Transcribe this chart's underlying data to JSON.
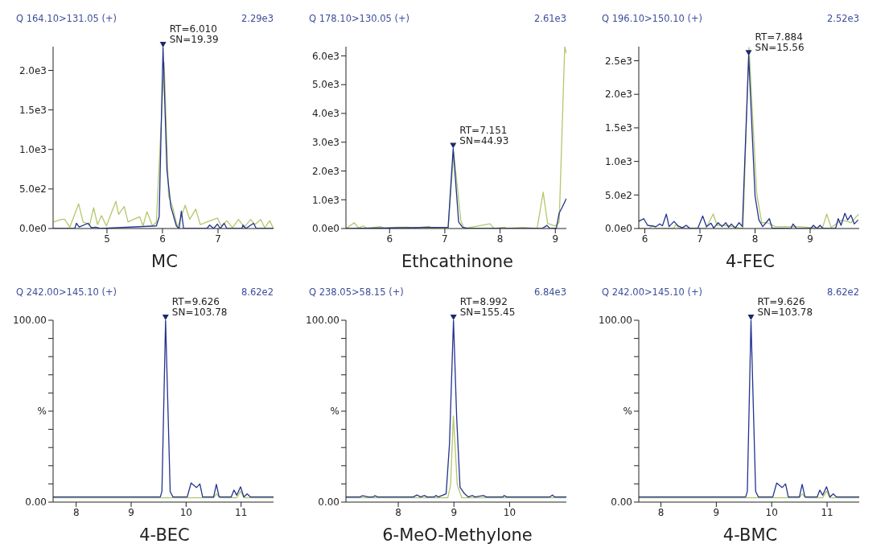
{
  "chart_data": [
    {
      "type": "line",
      "title": "Q 164.10>131.05 (+)",
      "xlabel": "MC",
      "annotations": [
        "2.29e3",
        {
          "text": "RT=6.010\nSN=19.39",
          "x": 6.01,
          "y": 2290
        }
      ],
      "xlim": [
        4.03,
        8.0
      ],
      "xticks": [
        5,
        6,
        7
      ],
      "ylim": [
        0,
        2300
      ],
      "yticks": [
        {
          "value": 0,
          "label": "0.0e0"
        },
        {
          "value": 500,
          "label": "5.0e2"
        },
        {
          "value": 1000,
          "label": "1.0e3"
        },
        {
          "value": 1500,
          "label": "1.5e3"
        },
        {
          "value": 2000,
          "label": "2.0e3"
        }
      ],
      "series": [
        {
          "color": "#b5c76c",
          "x": [
            4.04,
            4.18,
            4.24,
            4.33,
            4.49,
            4.57,
            4.69,
            4.76,
            4.83,
            4.9,
            4.99,
            5.16,
            5.21,
            5.31,
            5.38,
            5.48,
            5.59,
            5.65,
            5.72,
            5.82,
            5.89,
            6.03,
            6.11,
            6.18,
            6.27,
            6.41,
            6.49,
            6.6,
            6.68,
            6.8,
            6.99,
            7.06,
            7.16,
            7.26,
            7.37,
            7.47,
            7.59,
            7.66,
            7.77,
            7.84,
            7.93,
            8.0
          ],
          "values": [
            82,
            115,
            115,
            16,
            312,
            82,
            49,
            262,
            49,
            164,
            33,
            344,
            180,
            279,
            82,
            115,
            148,
            33,
            213,
            33,
            82,
            2100,
            410,
            279,
            16,
            295,
            115,
            246,
            49,
            82,
            131,
            33,
            98,
            10,
            115,
            16,
            115,
            49,
            115,
            10,
            98,
            0
          ]
        },
        {
          "color": "#23338f",
          "x": [
            4.03,
            4.42,
            4.45,
            4.5,
            4.66,
            4.72,
            4.8,
            4.88,
            5.89,
            5.94,
            6.01,
            6.08,
            6.15,
            6.25,
            6.3,
            6.34,
            6.38,
            6.8,
            6.85,
            6.92,
            6.99,
            7.04,
            7.11,
            7.16,
            7.43,
            7.45,
            7.5,
            7.64,
            7.69,
            8.0
          ],
          "values": [
            0,
            0,
            66,
            20,
            66,
            10,
            16,
            0,
            33,
            148,
            2290,
            740,
            280,
            33,
            0,
            220,
            0,
            0,
            43,
            0,
            56,
            0,
            66,
            0,
            0,
            43,
            0,
            66,
            0,
            0
          ]
        }
      ]
    },
    {
      "type": "line",
      "title": "Q 178.10>130.05 (+)",
      "xlabel": "Ethcathinone",
      "annotations": [
        "2.61e3",
        {
          "text": "RT=7.151\nSN=44.93",
          "x": 7.151,
          "y": 2780
        }
      ],
      "xlim": [
        5.21,
        9.2
      ],
      "xticks": [
        6,
        7,
        8,
        9
      ],
      "ylim": [
        0,
        6320
      ],
      "yticks": [
        {
          "value": 0,
          "label": "0.0e0"
        },
        {
          "value": 1000,
          "label": "1.0e3"
        },
        {
          "value": 2000,
          "label": "2.0e3"
        },
        {
          "value": 3000,
          "label": "3.0e3"
        },
        {
          "value": 4000,
          "label": "4.0e3"
        },
        {
          "value": 5000,
          "label": "5.0e3"
        },
        {
          "value": 6000,
          "label": "6.0e3"
        }
      ],
      "series": [
        {
          "color": "#b5c76c",
          "x": [
            5.21,
            5.36,
            5.44,
            5.52,
            5.59,
            5.84,
            5.91,
            6.13,
            6.33,
            6.38,
            6.71,
            6.8,
            7.06,
            7.16,
            7.29,
            7.35,
            7.82,
            7.89,
            8.08,
            8.13,
            8.41,
            8.67,
            8.78,
            8.86,
            9.0,
            9.07,
            9.17,
            9.2
          ],
          "values": [
            0,
            200,
            20,
            90,
            10,
            63,
            0,
            45,
            45,
            0,
            72,
            0,
            0,
            2660,
            270,
            0,
            162,
            0,
            45,
            0,
            36,
            0,
            1260,
            180,
            90,
            225,
            6320,
            6090
          ]
        },
        {
          "color": "#23338f",
          "x": [
            5.21,
            7.06,
            7.151,
            7.25,
            7.32,
            7.42,
            8.76,
            8.85,
            8.9,
            9.02,
            9.07,
            9.12,
            9.2
          ],
          "values": [
            0,
            45,
            2780,
            225,
            45,
            0,
            0,
            108,
            0,
            18,
            540,
            720,
            1040
          ]
        }
      ]
    },
    {
      "type": "line",
      "title": "Q 196.10>150.10 (+)",
      "xlabel": "4-FEC",
      "annotations": [
        "2.52e3",
        {
          "text": "RT=7.884\nSN=15.56",
          "x": 7.884,
          "y": 2575
        }
      ],
      "xlim": [
        5.89,
        9.89
      ],
      "xticks": [
        6,
        7,
        8,
        9
      ],
      "ylim": [
        0,
        2710
      ],
      "yticks": [
        {
          "value": 0,
          "label": "0.0e0"
        },
        {
          "value": 500,
          "label": "5.0e2"
        },
        {
          "value": 1000,
          "label": "1.0e3"
        },
        {
          "value": 1500,
          "label": "1.5e3"
        },
        {
          "value": 2000,
          "label": "2.0e3"
        },
        {
          "value": 2500,
          "label": "2.5e3"
        }
      ],
      "series": [
        {
          "color": "#b5c76c",
          "x": [
            5.89,
            6.08,
            6.14,
            6.21,
            6.52,
            6.57,
            6.62,
            7.1,
            7.16,
            7.24,
            7.31,
            7.5,
            7.74,
            7.78,
            7.89,
            8.03,
            8.12,
            8.22,
            8.37,
            8.8,
            9.22,
            9.3,
            9.38,
            9.57,
            9.74,
            9.88
          ],
          "values": [
            0,
            0,
            48,
            0,
            0,
            68,
            0,
            0,
            87,
            215,
            48,
            48,
            0,
            8,
            2700,
            525,
            87,
            87,
            28,
            28,
            0,
            215,
            16,
            127,
            87,
            215
          ]
        },
        {
          "color": "#23338f",
          "x": [
            5.89,
            5.98,
            6.05,
            6.2,
            6.27,
            6.32,
            6.39,
            6.44,
            6.53,
            6.6,
            6.68,
            6.75,
            6.82,
            6.96,
            7.05,
            7.12,
            7.2,
            7.25,
            7.33,
            7.4,
            7.47,
            7.52,
            7.57,
            7.64,
            7.71,
            7.77,
            7.884,
            8.0,
            8.07,
            8.14,
            8.26,
            8.31,
            8.65,
            8.69,
            8.75,
            9.01,
            9.06,
            9.12,
            9.18,
            9.23,
            9.46,
            9.51,
            9.56,
            9.63,
            9.68,
            9.74,
            9.8,
            9.87
          ],
          "values": [
            107,
            147,
            48,
            28,
            68,
            40,
            215,
            28,
            107,
            40,
            10,
            48,
            0,
            0,
            187,
            28,
            80,
            8,
            87,
            28,
            87,
            20,
            68,
            8,
            87,
            28,
            2575,
            485,
            127,
            28,
            147,
            8,
            0,
            68,
            0,
            0,
            48,
            0,
            48,
            0,
            0,
            147,
            48,
            227,
            127,
            199,
            68,
            127
          ]
        }
      ]
    },
    {
      "type": "line",
      "title": "Q 242.00>145.10 (+)",
      "xlabel": "4-BEC",
      "annotations": [
        "8.62e2",
        {
          "text": "RT=9.626\nSN=103.78",
          "x": 9.626,
          "y": 100
        }
      ],
      "xlim": [
        7.58,
        11.59
      ],
      "xticks": [
        8,
        9,
        10,
        11
      ],
      "ylim": [
        0,
        100
      ],
      "yticks": [
        {
          "value": 0,
          "label": "0.00"
        },
        {
          "value": 10,
          "label": null
        },
        {
          "value": 20,
          "label": null
        },
        {
          "value": 30,
          "label": null
        },
        {
          "value": 40,
          "label": null
        },
        {
          "value": 50,
          "label": "%"
        },
        {
          "value": 60,
          "label": null
        },
        {
          "value": 70,
          "label": null
        },
        {
          "value": 80,
          "label": null
        },
        {
          "value": 90,
          "label": null
        },
        {
          "value": 100,
          "label": "100.00"
        }
      ],
      "series": [
        {
          "color": "#b5c76c",
          "x": [
            7.58,
            10.5,
            10.55,
            10.62,
            10.92,
            10.99,
            11.05,
            11.59
          ],
          "values": [
            2.4,
            2.4,
            4.5,
            2.4,
            2.4,
            6,
            2.4,
            2.4
          ]
        },
        {
          "color": "#23338f",
          "x": [
            7.58,
            9.53,
            9.56,
            9.626,
            9.71,
            9.76,
            10.02,
            10.09,
            10.19,
            10.25,
            10.3,
            10.5,
            10.55,
            10.6,
            10.82,
            10.87,
            10.92,
            10.99,
            11.05,
            11.11,
            11.17,
            11.59
          ],
          "values": [
            2.8,
            2.8,
            5.9,
            100,
            5.9,
            2.8,
            2.8,
            10.5,
            8,
            10,
            2.8,
            2.8,
            9.8,
            2.8,
            2.8,
            6.6,
            3.8,
            8.4,
            2.8,
            4.5,
            2.8,
            2.8
          ]
        }
      ]
    },
    {
      "type": "line",
      "title": "Q 238.05>58.15 (+)",
      "xlabel": "6-MeO-Methylone",
      "annotations": [
        "6.84e3",
        {
          "text": "RT=8.992\nSN=155.45",
          "x": 8.992,
          "y": 100
        }
      ],
      "xlim": [
        7.06,
        11.02
      ],
      "xticks": [
        8,
        9,
        10
      ],
      "ylim": [
        0,
        100
      ],
      "yticks": [
        {
          "value": 0,
          "label": "0.00"
        },
        {
          "value": 10,
          "label": null
        },
        {
          "value": 20,
          "label": null
        },
        {
          "value": 30,
          "label": null
        },
        {
          "value": 40,
          "label": null
        },
        {
          "value": 50,
          "label": "%"
        },
        {
          "value": 60,
          "label": null
        },
        {
          "value": 70,
          "label": null
        },
        {
          "value": 80,
          "label": null
        },
        {
          "value": 90,
          "label": null
        },
        {
          "value": 100,
          "label": "100.00"
        }
      ],
      "series": [
        {
          "color": "#b5c76c",
          "x": [
            7.06,
            8.89,
            8.94,
            8.99,
            9.06,
            9.14,
            11.02
          ],
          "values": [
            2.4,
            2.4,
            9.5,
            47.4,
            9.5,
            2.4,
            2.4
          ]
        },
        {
          "color": "#23338f",
          "x": [
            7.06,
            7.31,
            7.36,
            7.46,
            7.55,
            7.58,
            7.63,
            8.27,
            8.34,
            8.4,
            8.47,
            8.52,
            8.64,
            8.68,
            8.72,
            8.81,
            8.86,
            8.92,
            8.992,
            9.05,
            9.11,
            9.19,
            9.26,
            9.33,
            9.38,
            9.53,
            9.58,
            9.88,
            9.9,
            9.95,
            10.72,
            10.77,
            10.81,
            11.02
          ],
          "values": [
            2.8,
            2.8,
            3.5,
            2.8,
            2.8,
            3.5,
            2.8,
            2.8,
            3.9,
            2.8,
            3.6,
            2.8,
            2.8,
            3.6,
            2.8,
            3.9,
            4.6,
            32,
            100,
            46,
            8.1,
            4.6,
            2.8,
            3.6,
            2.8,
            3.6,
            2.8,
            2.8,
            3.6,
            2.8,
            2.8,
            3.9,
            2.8,
            2.8
          ]
        }
      ]
    },
    {
      "type": "line",
      "title": "Q 242.00>145.10 (+)",
      "xlabel": "4-BMC",
      "annotations": [
        "8.62e2",
        {
          "text": "RT=9.626\nSN=103.78",
          "x": 9.626,
          "y": 100
        }
      ],
      "xlim": [
        7.6,
        11.58
      ],
      "xticks": [
        8,
        9,
        10,
        11
      ],
      "ylim": [
        0,
        100
      ],
      "yticks": [
        {
          "value": 0,
          "label": "0.00"
        },
        {
          "value": 10,
          "label": null
        },
        {
          "value": 20,
          "label": null
        },
        {
          "value": 30,
          "label": null
        },
        {
          "value": 40,
          "label": null
        },
        {
          "value": 50,
          "label": "%"
        },
        {
          "value": 60,
          "label": null
        },
        {
          "value": 70,
          "label": null
        },
        {
          "value": 80,
          "label": null
        },
        {
          "value": 90,
          "label": null
        },
        {
          "value": 100,
          "label": "100.00"
        }
      ],
      "series": [
        {
          "color": "#b5c76c",
          "x": [
            7.6,
            10.5,
            10.55,
            10.62,
            10.92,
            10.99,
            11.05,
            11.58
          ],
          "values": [
            2.4,
            2.4,
            4.5,
            2.4,
            2.4,
            6,
            2.4,
            2.4
          ]
        },
        {
          "color": "#23338f",
          "x": [
            7.6,
            9.53,
            9.56,
            9.626,
            9.71,
            9.76,
            10.02,
            10.09,
            10.19,
            10.25,
            10.3,
            10.5,
            10.55,
            10.6,
            10.82,
            10.87,
            10.92,
            10.99,
            11.05,
            11.11,
            11.17,
            11.58
          ],
          "values": [
            2.8,
            2.8,
            5.9,
            100,
            5.9,
            2.8,
            2.8,
            10.5,
            8,
            10,
            2.8,
            2.8,
            9.8,
            2.8,
            2.8,
            6.6,
            3.8,
            8.4,
            2.8,
            4.5,
            2.8,
            2.8
          ]
        }
      ]
    }
  ]
}
